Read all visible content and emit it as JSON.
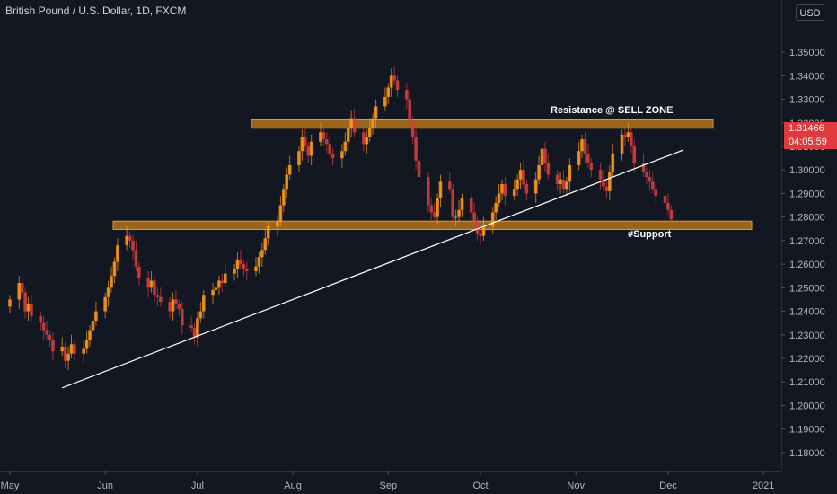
{
  "header": {
    "title": "British Pound / U.S. Dollar, 1D, FXCM",
    "currency_button": "USD"
  },
  "price_tag": {
    "price": "1.31466",
    "countdown": "04:05:59"
  },
  "colors": {
    "background": "#131722",
    "up": "#ff9b19",
    "down": "#d63e3e",
    "zone": "#c87f1a",
    "trend": "#ffffff",
    "price_tag": "#e0393e"
  },
  "chart_data": {
    "type": "candlestick",
    "title": "British Pound / U.S. Dollar, 1D, FXCM",
    "ylim": [
      1.175,
      1.355
    ],
    "y_ticks": [
      1.18,
      1.19,
      1.2,
      1.21,
      1.22,
      1.23,
      1.24,
      1.25,
      1.26,
      1.27,
      1.28,
      1.29,
      1.3,
      1.31,
      1.32,
      1.33,
      1.34,
      1.35
    ],
    "y_tick_labels": [
      "1.18000",
      "1.19000",
      "1.20000",
      "1.21000",
      "1.22000",
      "1.23000",
      "1.24000",
      "1.25000",
      "1.26000",
      "1.27000",
      "1.28000",
      "1.29000",
      "1.30000",
      "1.31000",
      "1.32000",
      "1.33000",
      "1.34000",
      "1.35000"
    ],
    "x_labels": [
      "May",
      "Jun",
      "Jul",
      "Aug",
      "Sep",
      "Oct",
      "Nov",
      "Dec",
      "2021"
    ],
    "x_label_dates": [
      "2020-05-01",
      "2020-06-01",
      "2020-07-01",
      "2020-08-01",
      "2020-09-01",
      "2020-10-01",
      "2020-11-01",
      "2020-12-01",
      "2021-01-01"
    ],
    "candles_close": [
      1.245,
      1.252,
      1.248,
      1.24,
      1.243,
      1.238,
      1.235,
      1.232,
      1.23,
      1.228,
      1.223,
      1.225,
      1.219,
      1.222,
      1.226,
      1.222,
      1.224,
      1.228,
      1.232,
      1.236,
      1.24,
      1.246,
      1.25,
      1.255,
      1.261,
      1.268,
      1.272,
      1.27,
      1.266,
      1.259,
      1.254,
      1.25,
      1.253,
      1.247,
      1.246,
      1.244,
      1.24,
      1.245,
      1.243,
      1.241,
      1.234,
      1.233,
      1.229,
      1.237,
      1.24,
      1.247,
      1.249,
      1.25,
      1.253,
      1.252,
      1.256,
      1.258,
      1.262,
      1.26,
      1.258,
      1.257,
      1.259,
      1.263,
      1.266,
      1.271,
      1.276,
      1.278,
      1.285,
      1.292,
      1.298,
      1.302,
      1.308,
      1.314,
      1.31,
      1.306,
      1.312,
      1.316,
      1.313,
      1.311,
      1.307,
      1.305,
      1.308,
      1.312,
      1.318,
      1.322,
      1.316,
      1.311,
      1.314,
      1.318,
      1.322,
      1.327,
      1.331,
      1.335,
      1.34,
      1.338,
      1.334,
      1.33,
      1.321,
      1.314,
      1.304,
      1.297,
      1.285,
      1.282,
      1.28,
      1.288,
      1.295,
      1.292,
      1.28,
      1.28,
      1.283,
      1.288,
      1.282,
      1.278,
      1.273,
      1.272,
      1.276,
      1.282,
      1.286,
      1.29,
      1.294,
      1.289,
      1.292,
      1.296,
      1.3,
      1.294,
      1.29,
      1.296,
      1.302,
      1.309,
      1.303,
      1.298,
      1.294,
      1.296,
      1.292,
      1.295,
      1.302,
      1.308,
      1.313,
      1.307,
      1.303,
      1.3,
      1.296,
      1.293,
      1.291,
      1.299,
      1.307,
      1.315,
      1.314,
      1.316,
      1.31,
      1.303,
      1.299,
      1.297,
      1.295,
      1.292,
      1.289,
      1.286,
      1.283,
      1.279
    ],
    "support_zone": {
      "low": 1.2755,
      "high": 1.2775,
      "label": "#Support"
    },
    "resistance_zone": {
      "low": 1.3185,
      "high": 1.3205,
      "label": "Resistance @ SELL ZONE"
    },
    "trendline": {
      "start": [
        "2020-05-18",
        1.2075
      ],
      "end": [
        "2020-12-06",
        1.3085
      ]
    },
    "grid": false
  }
}
